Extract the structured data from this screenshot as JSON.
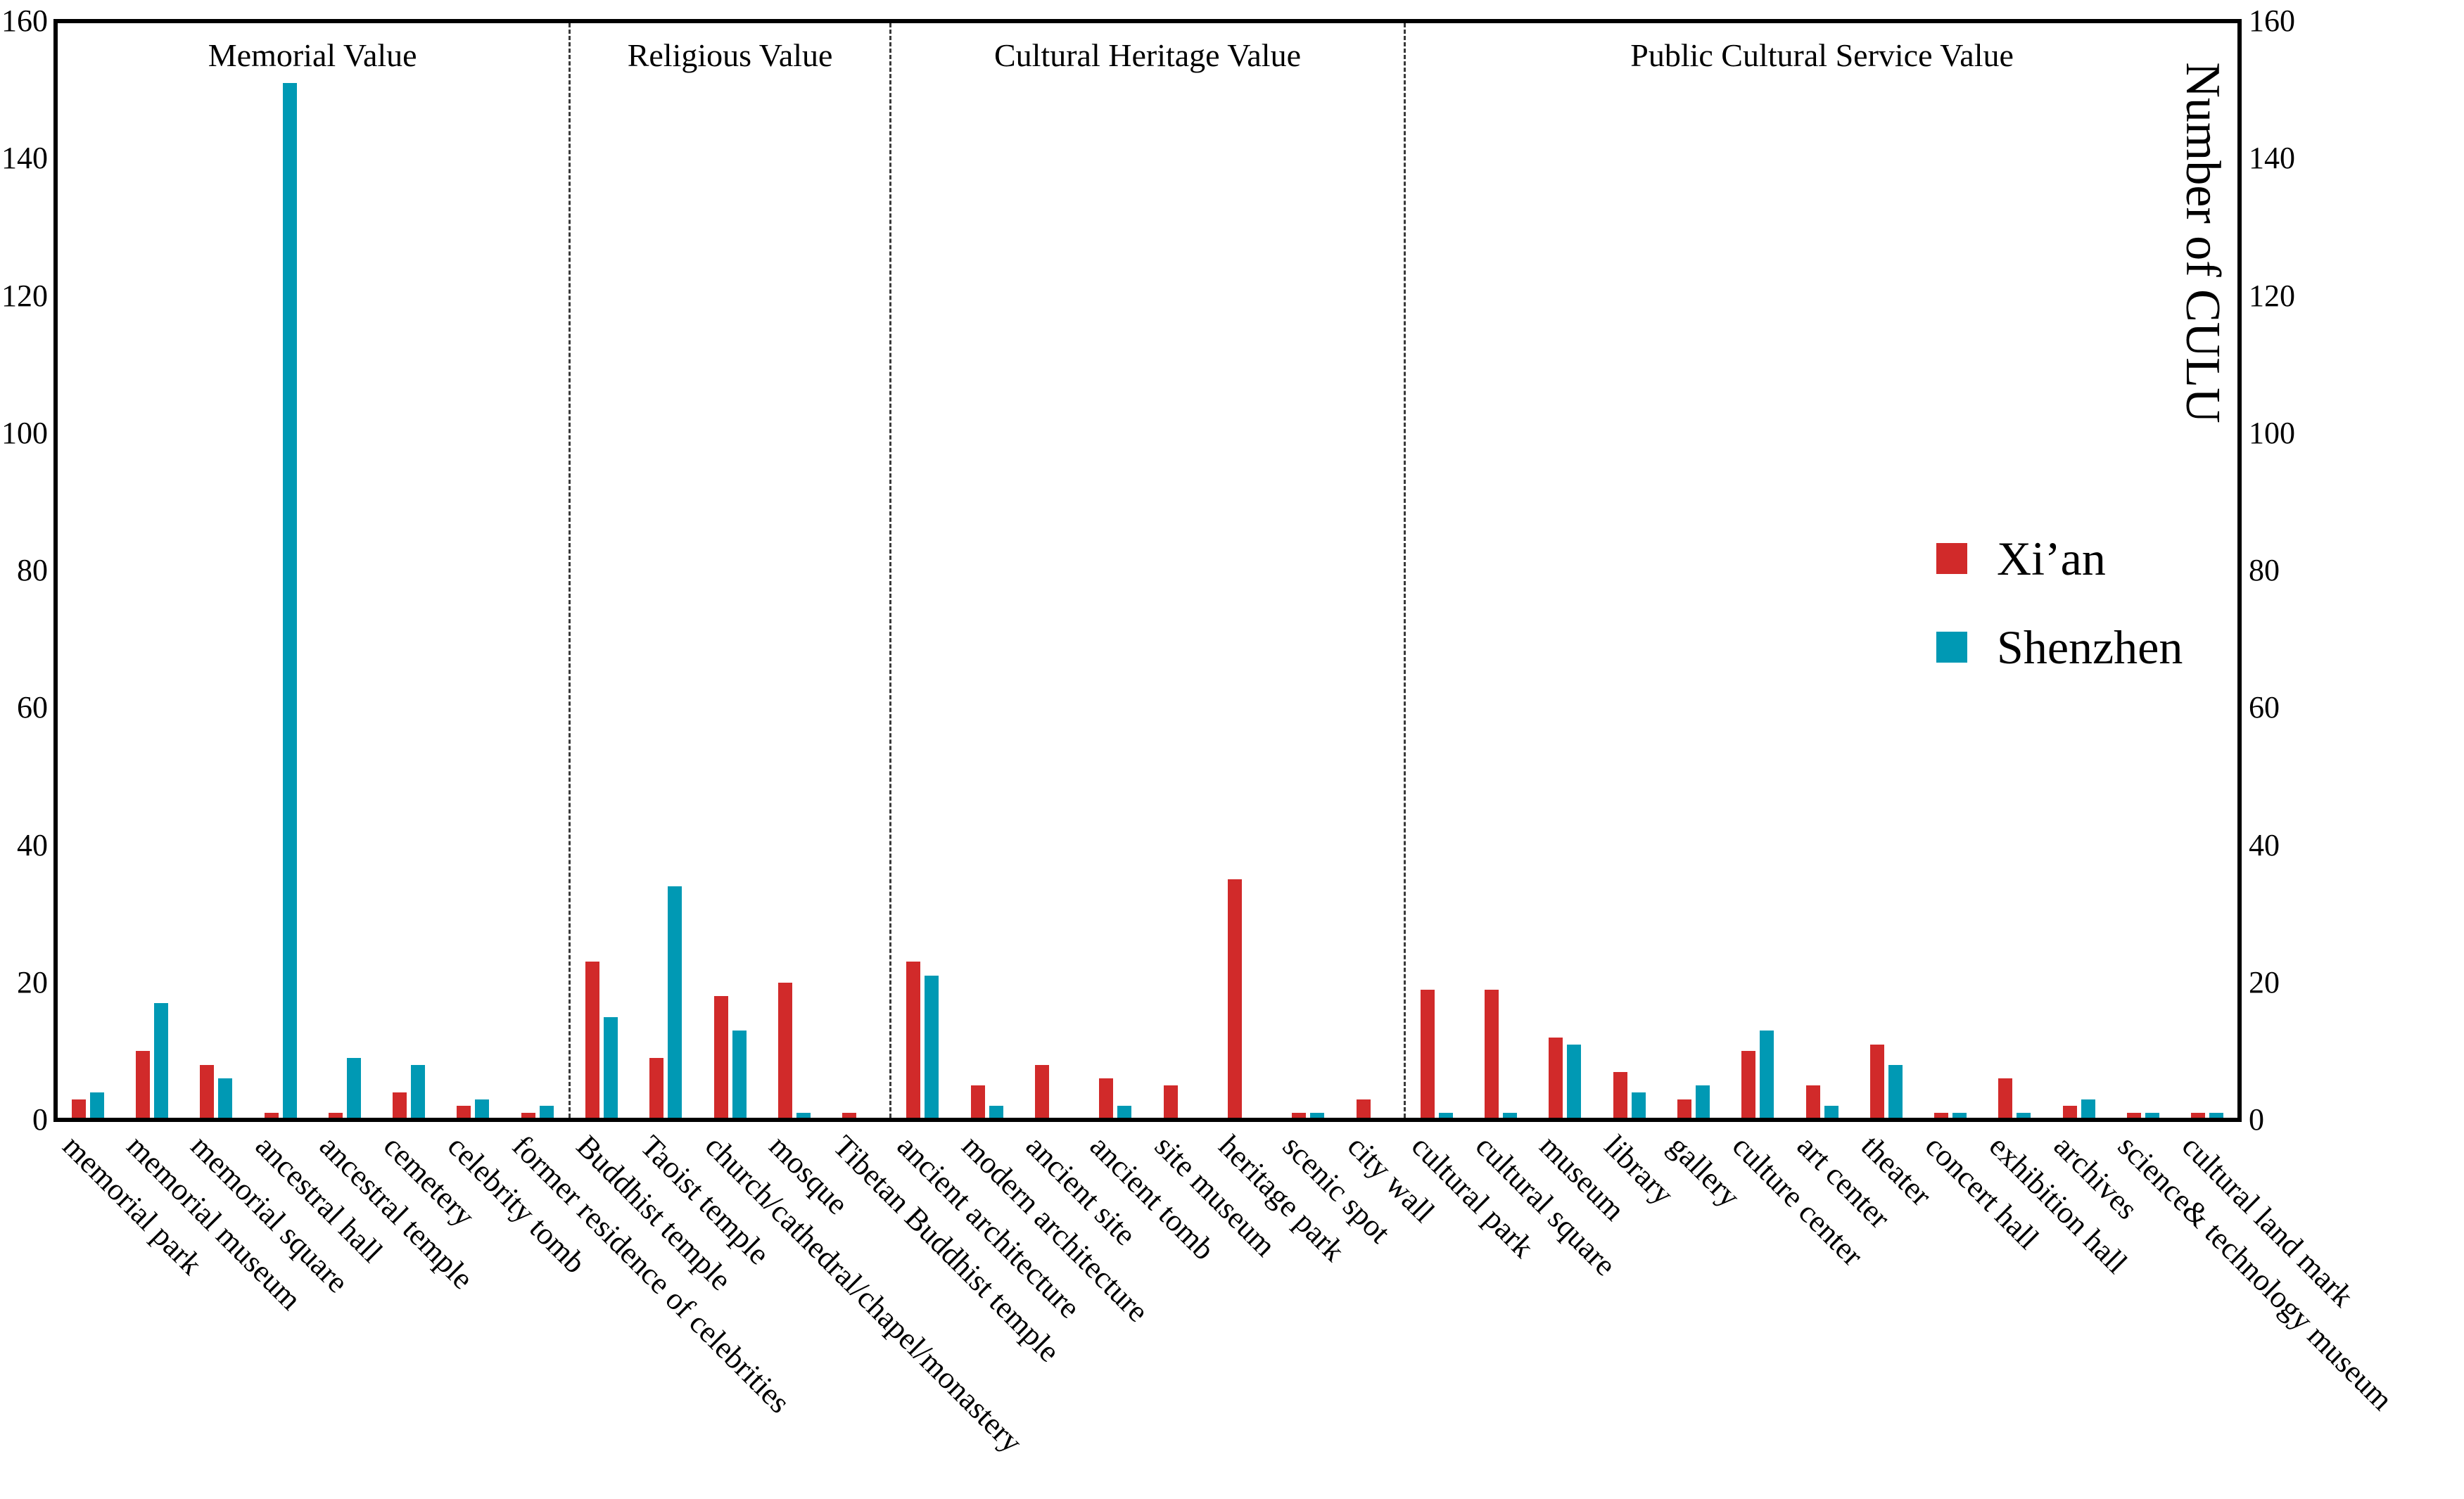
{
  "chart_data": {
    "type": "bar",
    "title": "",
    "ylabel_right": "Number of CULU",
    "ylim": [
      0,
      160
    ],
    "yticks": [
      0,
      20,
      40,
      60,
      80,
      100,
      120,
      140,
      160
    ],
    "grid": false,
    "legend_position": "upper-right-inside",
    "groups": [
      {
        "label": "Memorial Value",
        "count": 8
      },
      {
        "label": "Religious Value",
        "count": 5
      },
      {
        "label": "Cultural Heritage Value",
        "count": 8
      },
      {
        "label": "Public Cultural Service Value",
        "count": 13
      }
    ],
    "categories": [
      "memorial park",
      "memorial museum",
      "memorial square",
      "ancestral hall",
      "ancestral temple",
      "cemetery",
      "celebrity tomb",
      "former residence of celebrities",
      "Buddhist temple",
      "Taoist temple",
      "church/cathedral/chapel/monastery",
      "mosque",
      "Tibetan Buddhist temple",
      "ancient architecture",
      "modern architecture",
      "ancient site",
      "ancient tomb",
      "site museum",
      "heritage park",
      "scenic spot",
      "city wall",
      "cultural park",
      "cultural square",
      "museum",
      "library",
      "gallery",
      "culture center",
      "art center",
      "theater",
      "concert hall",
      "exhibition hall",
      "archives",
      "science& technology museum",
      "cultural land mark"
    ],
    "series": [
      {
        "name": "Xi’an",
        "color": "#d12a2a",
        "values": [
          3,
          10,
          8,
          1,
          1,
          4,
          2,
          1,
          23,
          9,
          18,
          20,
          1,
          23,
          5,
          8,
          6,
          5,
          35,
          1,
          3,
          19,
          19,
          12,
          7,
          3,
          10,
          5,
          11,
          1,
          6,
          2,
          1,
          1
        ]
      },
      {
        "name": "Shenzhen",
        "color": "#0099b4",
        "values": [
          4,
          17,
          6,
          151,
          9,
          8,
          3,
          2,
          15,
          34,
          13,
          1,
          0,
          21,
          2,
          0,
          2,
          0,
          0,
          1,
          0,
          1,
          1,
          11,
          4,
          5,
          13,
          2,
          8,
          1,
          1,
          3,
          1,
          1
        ]
      }
    ],
    "axis_color": "#000000",
    "divider_style": "dashed"
  }
}
